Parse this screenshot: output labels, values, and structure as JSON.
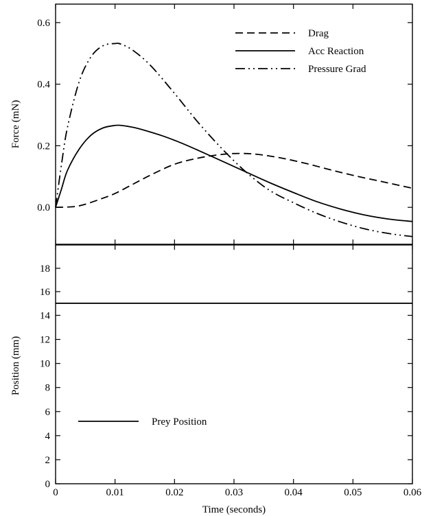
{
  "chart_data": [
    {
      "type": "line",
      "title": "",
      "xlabel": "",
      "ylabel": "Force (mN)",
      "xlim": [
        0,
        0.06
      ],
      "ylim": [
        -0.12,
        0.66
      ],
      "y_ticks": [
        "0.0",
        "0.2",
        "0.4",
        "0.6"
      ],
      "y_tick_values": [
        0.0,
        0.2,
        0.4,
        0.6
      ],
      "legend_position": "top-right",
      "series": [
        {
          "name": "Drag",
          "dash": "dashed",
          "x": [
            0,
            0.003,
            0.005,
            0.008,
            0.01,
            0.013,
            0.016,
            0.02,
            0.024,
            0.028,
            0.031,
            0.034,
            0.038,
            0.042,
            0.046,
            0.05,
            0.055,
            0.06
          ],
          "y": [
            0.0,
            0.002,
            0.01,
            0.03,
            0.045,
            0.075,
            0.105,
            0.14,
            0.16,
            0.172,
            0.175,
            0.172,
            0.16,
            0.143,
            0.123,
            0.104,
            0.083,
            0.062
          ]
        },
        {
          "name": "Acc Reaction",
          "dash": "solid",
          "x": [
            0,
            0.001,
            0.002,
            0.004,
            0.006,
            0.008,
            0.01,
            0.011,
            0.013,
            0.015,
            0.018,
            0.021,
            0.024,
            0.028,
            0.032,
            0.036,
            0.04,
            0.044,
            0.048,
            0.052,
            0.056,
            0.06
          ],
          "y": [
            0.0,
            0.06,
            0.12,
            0.19,
            0.235,
            0.258,
            0.266,
            0.266,
            0.26,
            0.25,
            0.232,
            0.21,
            0.185,
            0.15,
            0.115,
            0.08,
            0.048,
            0.018,
            -0.006,
            -0.025,
            -0.038,
            -0.046
          ]
        },
        {
          "name": "Pressure Grad",
          "dash": "dashdotdot",
          "x": [
            0,
            0.001,
            0.002,
            0.004,
            0.006,
            0.008,
            0.01,
            0.011,
            0.013,
            0.016,
            0.02,
            0.024,
            0.028,
            0.032,
            0.036,
            0.04,
            0.044,
            0.048,
            0.052,
            0.056,
            0.06
          ],
          "y": [
            0.0,
            0.14,
            0.26,
            0.41,
            0.49,
            0.525,
            0.532,
            0.53,
            0.51,
            0.46,
            0.37,
            0.275,
            0.19,
            0.115,
            0.055,
            0.015,
            -0.02,
            -0.048,
            -0.07,
            -0.085,
            -0.095
          ]
        }
      ]
    },
    {
      "type": "line",
      "title": "",
      "xlabel": "Time (seconds)",
      "ylabel": "Position (mm)",
      "xlim": [
        0,
        0.06
      ],
      "x_ticks": [
        "0",
        "0.01",
        "0.02",
        "0.03",
        "0.04",
        "0.05",
        "0.06"
      ],
      "x_tick_values": [
        0,
        0.01,
        0.02,
        0.03,
        0.04,
        0.05,
        0.06
      ],
      "ylim_lower": [
        0,
        15
      ],
      "ylim_upper": [
        15,
        20
      ],
      "y_ticks_lower": [
        "0",
        "2",
        "4",
        "6",
        "8",
        "10",
        "12",
        "14"
      ],
      "y_tick_values_lower": [
        0,
        2,
        4,
        6,
        8,
        10,
        12,
        14
      ],
      "y_ticks_upper": [
        "16",
        "18"
      ],
      "y_tick_values_upper": [
        16,
        18
      ],
      "legend_position": "lower-left",
      "series": [
        {
          "name": "Prey Position",
          "dash": "solid",
          "x": [
            0,
            0.06
          ],
          "y": [
            15,
            15
          ]
        }
      ]
    }
  ]
}
